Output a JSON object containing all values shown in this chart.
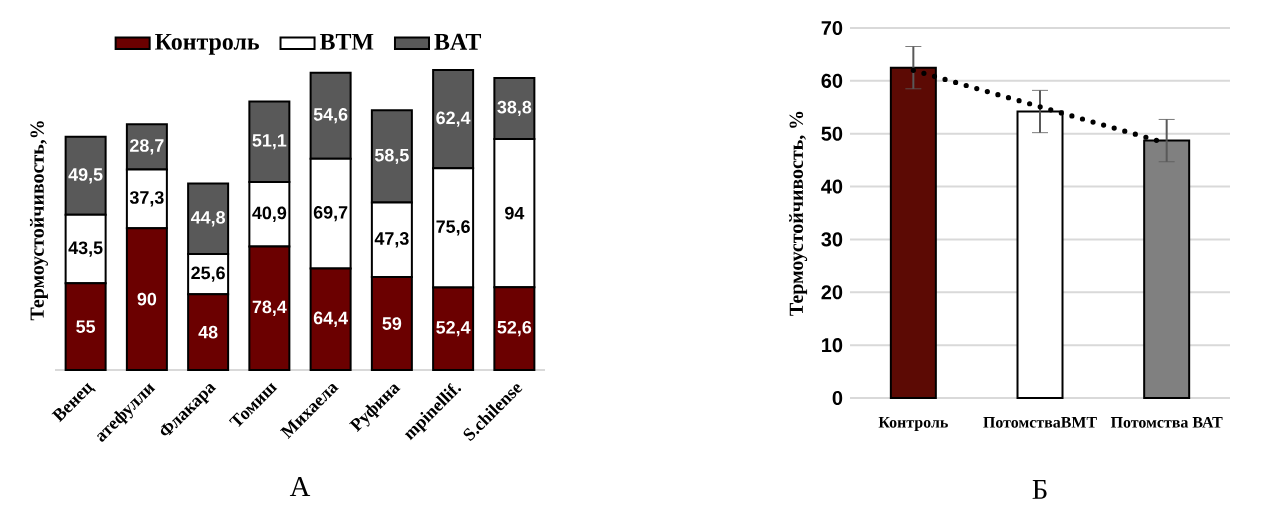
{
  "chart_data": [
    {
      "type": "bar",
      "stacked": true,
      "ylabel": "Термоустойчивость,%",
      "legend": "top",
      "categories": [
        "Венец",
        "атефулли",
        "Флакара",
        "Томиш",
        "Михаела",
        "Руфина",
        "mpinellif.",
        "S.chilense"
      ],
      "series": [
        {
          "name": "Контроль",
          "color": "#6b0000",
          "values": [
            55,
            90,
            48,
            78.4,
            64.4,
            59,
            52.4,
            52.6
          ],
          "value_labels": [
            "55",
            "90",
            "48",
            "78,4",
            "64,4",
            "59",
            "52,4",
            "52,6"
          ]
        },
        {
          "name": "BTM",
          "color": "#ffffff",
          "values": [
            43.5,
            37.3,
            25.6,
            40.9,
            69.7,
            47.3,
            75.6,
            94
          ],
          "value_labels": [
            "43,5",
            "37,3",
            "25,6",
            "40,9",
            "69,7",
            "47,3",
            "75,6",
            "94"
          ]
        },
        {
          "name": "BAT",
          "color": "#595959",
          "values": [
            49.5,
            28.7,
            44.8,
            51.1,
            54.6,
            58.5,
            62.4,
            38.8
          ],
          "value_labels": [
            "49,5",
            "28,7",
            "44,8",
            "51,1",
            "54,6",
            "58,5",
            "62,4",
            "38,8"
          ]
        }
      ],
      "annotations": [
        "А"
      ]
    },
    {
      "type": "bar",
      "ylabel": "Термоустойчивость, %",
      "grid": "y",
      "ylim": [
        0,
        70
      ],
      "yticks": [
        0,
        10,
        20,
        30,
        40,
        50,
        60,
        70
      ],
      "categories": [
        "Контроль",
        "ПотомстваВМТ",
        "Потомства ВАТ"
      ],
      "series": [
        {
          "type": "bar",
          "values": [
            62.5,
            54.2,
            48.7
          ],
          "colors": [
            "#5c0a04",
            "#ffffff",
            "#808080"
          ],
          "errors": [
            4,
            4,
            4
          ]
        },
        {
          "type": "line",
          "values": [
            62.0,
            55.1,
            48.2
          ],
          "color": "#000000",
          "line_style": "dotted"
        }
      ],
      "annotations": [
        "Б"
      ]
    }
  ]
}
